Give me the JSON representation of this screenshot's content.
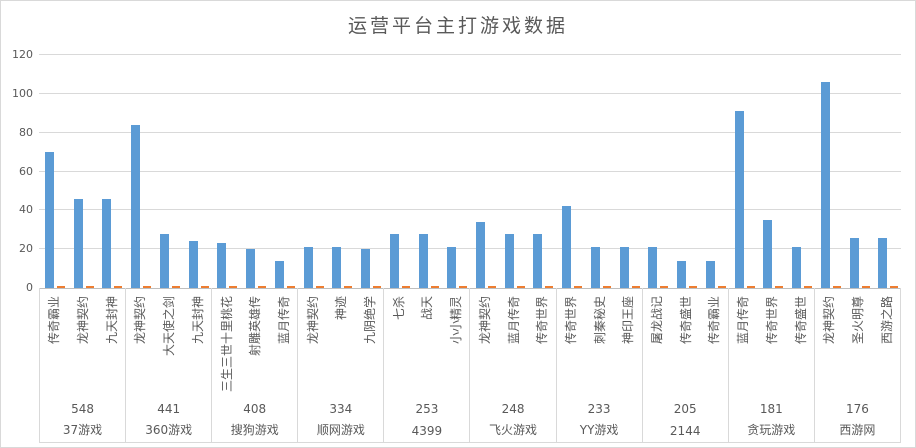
{
  "chart_data": {
    "type": "bar",
    "title": "运营平台主打游戏数据",
    "xlabel": "",
    "ylabel": "",
    "ylim": [
      0,
      120
    ],
    "ytick_labels": [
      "0",
      "20",
      "40",
      "60",
      "80",
      "100",
      "120"
    ],
    "grid": true,
    "legend_position": "none",
    "colors": {
      "primary_bar": "#5b9bd5",
      "secondary_bar": "#ed7d31",
      "gridline": "#d9d9d9",
      "axis_line": "#bfbfbf",
      "text": "#595959"
    },
    "secondary_series_value": 1,
    "groups": [
      {
        "platform": "37游戏",
        "count": "548",
        "games": [
          "传奇霸业",
          "龙神契约",
          "九天封神"
        ],
        "values": [
          70,
          46,
          46
        ]
      },
      {
        "platform": "360游戏",
        "count": "441",
        "games": [
          "龙神契约",
          "大天使之剑",
          "九天封神"
        ],
        "values": [
          84,
          28,
          24
        ]
      },
      {
        "platform": "搜狗游戏",
        "count": "408",
        "games": [
          "三生三世十里桃花",
          "射雕英雄传",
          "蓝月传奇"
        ],
        "values": [
          23,
          20,
          14
        ]
      },
      {
        "platform": "顺网游戏",
        "count": "334",
        "games": [
          "龙神契约",
          "神迹",
          "九阴绝学"
        ],
        "values": [
          21,
          21,
          20
        ]
      },
      {
        "platform": "4399",
        "count": "253",
        "games": [
          "七杀",
          "战天",
          "小小精灵"
        ],
        "values": [
          28,
          28,
          21
        ]
      },
      {
        "platform": "飞火游戏",
        "count": "248",
        "games": [
          "龙神契约",
          "蓝月传奇",
          "传奇世界"
        ],
        "values": [
          34,
          28,
          28
        ]
      },
      {
        "platform": "YY游戏",
        "count": "233",
        "games": [
          "传奇世界",
          "刺秦秘史",
          "神印王座"
        ],
        "values": [
          42,
          21,
          21
        ]
      },
      {
        "platform": "2144",
        "count": "205",
        "games": [
          "屠龙战记",
          "传奇盛世",
          "传奇霸业"
        ],
        "values": [
          21,
          14,
          14
        ]
      },
      {
        "platform": "贪玩游戏",
        "count": "181",
        "games": [
          "蓝月传奇",
          "传奇世界",
          "传奇盛世"
        ],
        "values": [
          91,
          35,
          21
        ]
      },
      {
        "platform": "西游网",
        "count": "176",
        "games": [
          "龙神契约",
          "圣火明尊",
          "西游之路"
        ],
        "values": [
          106,
          26,
          26
        ]
      }
    ]
  }
}
